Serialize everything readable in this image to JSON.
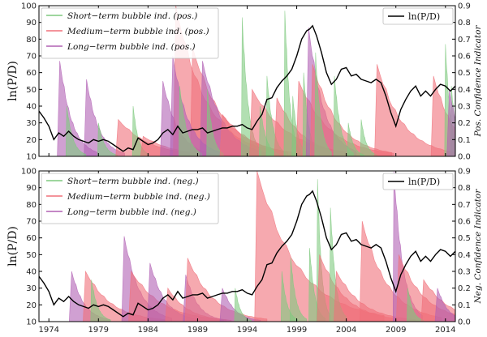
{
  "chart_data": [
    {
      "type": "area",
      "panel": "top",
      "ylabel": "ln(P/D)",
      "y2label": "Pos. Confidence Indicator",
      "ylim": [
        10,
        100
      ],
      "y2lim": [
        0.0,
        0.9
      ],
      "xlim": [
        1973,
        2015
      ],
      "yticks": [
        "10",
        "20",
        "30",
        "40",
        "50",
        "60",
        "70",
        "80",
        "90",
        "100"
      ],
      "y2ticks": [
        "0.0",
        "0.1",
        "0.2",
        "0.3",
        "0.4",
        "0.5",
        "0.6",
        "0.7",
        "0.8",
        "0.9"
      ],
      "legend_left": {
        "position": "top-left",
        "items": [
          {
            "label": "Short−term bubble ind. (pos.)",
            "color": "#7fc97f"
          },
          {
            "label": "Medium−term bubble ind. (pos.)",
            "color": "#f0707a"
          },
          {
            "label": "Long−term bubble ind. (pos.)",
            "color": "#b160b4"
          }
        ]
      },
      "legend_right": {
        "position": "top-right",
        "label": "ln(P/D)",
        "color": "#000000"
      },
      "series": [
        {
          "name": "ln(P/D)",
          "axis": "left",
          "color": "#000000",
          "x": [
            1973.0,
            1973.5,
            1974.0,
            1974.5,
            1975.0,
            1975.5,
            1976.0,
            1976.5,
            1977.0,
            1977.5,
            1978.0,
            1978.5,
            1979.0,
            1979.5,
            1980.0,
            1980.5,
            1981.0,
            1981.5,
            1982.0,
            1982.5,
            1983.0,
            1983.5,
            1984.0,
            1984.5,
            1985.0,
            1985.5,
            1986.0,
            1986.5,
            1987.0,
            1987.5,
            1988.0,
            1988.5,
            1989.0,
            1989.5,
            1990.0,
            1990.5,
            1991.0,
            1991.5,
            1992.0,
            1992.5,
            1993.0,
            1993.5,
            1994.0,
            1994.5,
            1995.0,
            1995.5,
            1996.0,
            1996.5,
            1997.0,
            1997.5,
            1998.0,
            1998.5,
            1999.0,
            1999.5,
            2000.0,
            2000.3,
            2000.6,
            2001.0,
            2001.5,
            2002.0,
            2002.5,
            2003.0,
            2003.5,
            2004.0,
            2004.5,
            2005.0,
            2005.5,
            2006.0,
            2006.5,
            2007.0,
            2007.5,
            2008.0,
            2008.5,
            2009.0,
            2009.5,
            2010.0,
            2010.5,
            2011.0,
            2011.5,
            2012.0,
            2012.5,
            2013.0,
            2013.5,
            2014.0,
            2014.5,
            2015.0
          ],
          "values": [
            37,
            33,
            28,
            20,
            24,
            22,
            25,
            22,
            20,
            19,
            18,
            20,
            19,
            20,
            19,
            17,
            15,
            13,
            15,
            14,
            21,
            19,
            17,
            18,
            20,
            24,
            26,
            23,
            28,
            24,
            25,
            26,
            26,
            27,
            24,
            25,
            26,
            27,
            27,
            28,
            28,
            29,
            27,
            26,
            31,
            35,
            44,
            45,
            51,
            55,
            58,
            62,
            70,
            80,
            85,
            86,
            88,
            82,
            72,
            60,
            53,
            56,
            62,
            63,
            58,
            59,
            56,
            55,
            54,
            56,
            54,
            46,
            36,
            28,
            38,
            44,
            49,
            52,
            46,
            49,
            46,
            50,
            53,
            52,
            49,
            52
          ]
        }
      ],
      "bubbles": [
        {
          "color": "#b160b4",
          "x": 1975.1,
          "height": 0.57,
          "decay": 1.2
        },
        {
          "color": "#b160b4",
          "x": 1977.8,
          "height": 0.46,
          "decay": 1.2
        },
        {
          "color": "#7fc97f",
          "x": 1975.8,
          "height": 0.3,
          "decay": 0.6
        },
        {
          "color": "#7fc97f",
          "x": 1979.0,
          "height": 0.2,
          "decay": 0.6
        },
        {
          "color": "#f0707a",
          "x": 1981.0,
          "height": 0.22,
          "decay": 3.0
        },
        {
          "color": "#7fc97f",
          "x": 1982.5,
          "height": 0.3,
          "decay": 0.5
        },
        {
          "color": "#f0707a",
          "x": 1983.5,
          "height": 0.12,
          "decay": 3.0
        },
        {
          "color": "#b160b4",
          "x": 1985.5,
          "height": 0.45,
          "decay": 1.5
        },
        {
          "color": "#f0707a",
          "x": 1986.8,
          "height": 0.9,
          "decay": 3.0
        },
        {
          "color": "#f0707a",
          "x": 1988.5,
          "height": 0.65,
          "decay": 3.0
        },
        {
          "color": "#b160b4",
          "x": 1986.5,
          "height": 0.6,
          "decay": 1.5
        },
        {
          "color": "#7fc97f",
          "x": 1987.2,
          "height": 0.42,
          "decay": 0.7
        },
        {
          "color": "#b160b4",
          "x": 1989.5,
          "height": 0.57,
          "decay": 2.0
        },
        {
          "color": "#7fc97f",
          "x": 1990.0,
          "height": 0.4,
          "decay": 0.5
        },
        {
          "color": "#f0707a",
          "x": 1991.5,
          "height": 0.25,
          "decay": 3.0
        },
        {
          "color": "#7fc97f",
          "x": 1993.5,
          "height": 0.83,
          "decay": 0.6
        },
        {
          "color": "#f0707a",
          "x": 1994.5,
          "height": 0.4,
          "decay": 3.5
        },
        {
          "color": "#7fc97f",
          "x": 1995.3,
          "height": 0.3,
          "decay": 0.6
        },
        {
          "color": "#7fc97f",
          "x": 1996.0,
          "height": 0.48,
          "decay": 0.6
        },
        {
          "color": "#f0707a",
          "x": 1997.0,
          "height": 0.35,
          "decay": 2.5
        },
        {
          "color": "#7fc97f",
          "x": 1997.8,
          "height": 0.87,
          "decay": 0.5
        },
        {
          "color": "#7fc97f",
          "x": 1998.6,
          "height": 0.36,
          "decay": 0.5
        },
        {
          "color": "#f0707a",
          "x": 1999.2,
          "height": 0.45,
          "decay": 3.0
        },
        {
          "color": "#7fc97f",
          "x": 1999.7,
          "height": 0.5,
          "decay": 0.5
        },
        {
          "color": "#b160b4",
          "x": 2000.2,
          "height": 0.77,
          "decay": 1.5
        },
        {
          "color": "#f0707a",
          "x": 2000.6,
          "height": 0.55,
          "decay": 2.5
        },
        {
          "color": "#7fc97f",
          "x": 2000.9,
          "height": 0.62,
          "decay": 0.5
        },
        {
          "color": "#7fc97f",
          "x": 2002.8,
          "height": 0.48,
          "decay": 0.6
        },
        {
          "color": "#7fc97f",
          "x": 2004.2,
          "height": 0.2,
          "decay": 0.5
        },
        {
          "color": "#7fc97f",
          "x": 2005.5,
          "height": 0.22,
          "decay": 0.5
        },
        {
          "color": "#f0707a",
          "x": 2007.1,
          "height": 0.55,
          "decay": 2.5
        },
        {
          "color": "#f0707a",
          "x": 2012.8,
          "height": 0.48,
          "decay": 2.0
        },
        {
          "color": "#7fc97f",
          "x": 2014.0,
          "height": 0.67,
          "decay": 0.5
        },
        {
          "color": "#7fc97f",
          "x": 2014.6,
          "height": 0.42,
          "decay": 0.5
        },
        {
          "color": "#b160b4",
          "x": 2014.4,
          "height": 0.4,
          "decay": 1.0
        }
      ]
    },
    {
      "type": "area",
      "panel": "bottom",
      "ylabel": "ln(P/D)",
      "y2label": "Neg. Confidence Indicator",
      "ylim": [
        10,
        100
      ],
      "y2lim": [
        0.0,
        0.9
      ],
      "xlim": [
        1973,
        2015
      ],
      "yticks": [
        "10",
        "20",
        "30",
        "40",
        "50",
        "60",
        "70",
        "80",
        "90",
        "100"
      ],
      "y2ticks": [
        "0.0",
        "0.1",
        "0.2",
        "0.3",
        "0.4",
        "0.5",
        "0.6",
        "0.7",
        "0.8",
        "0.9"
      ],
      "xticks": [
        "1974",
        "1979",
        "1984",
        "1989",
        "1994",
        "1999",
        "2004",
        "2009",
        "2014"
      ],
      "xtick_values": [
        1974,
        1979,
        1984,
        1989,
        1994,
        1999,
        2004,
        2009,
        2014
      ],
      "legend_left": {
        "position": "top-left",
        "items": [
          {
            "label": "Short−term bubble ind. (neg.)",
            "color": "#7fc97f"
          },
          {
            "label": "Medium−term bubble ind. (neg.)",
            "color": "#f0707a"
          },
          {
            "label": "Long−term bubble ind. (neg.)",
            "color": "#b160b4"
          }
        ]
      },
      "legend_right": {
        "position": "top-right",
        "label": "ln(P/D)",
        "color": "#000000"
      },
      "series": [
        {
          "name": "ln(P/D)",
          "axis": "left",
          "color": "#000000",
          "x": [
            1973.0,
            1973.5,
            1974.0,
            1974.5,
            1975.0,
            1975.5,
            1976.0,
            1976.5,
            1977.0,
            1977.5,
            1978.0,
            1978.5,
            1979.0,
            1979.5,
            1980.0,
            1980.5,
            1981.0,
            1981.5,
            1982.0,
            1982.5,
            1983.0,
            1983.5,
            1984.0,
            1984.5,
            1985.0,
            1985.5,
            1986.0,
            1986.5,
            1987.0,
            1987.5,
            1988.0,
            1988.5,
            1989.0,
            1989.5,
            1990.0,
            1990.5,
            1991.0,
            1991.5,
            1992.0,
            1992.5,
            1993.0,
            1993.5,
            1994.0,
            1994.5,
            1995.0,
            1995.5,
            1996.0,
            1996.5,
            1997.0,
            1997.5,
            1998.0,
            1998.5,
            1999.0,
            1999.5,
            2000.0,
            2000.3,
            2000.6,
            2001.0,
            2001.5,
            2002.0,
            2002.5,
            2003.0,
            2003.5,
            2004.0,
            2004.5,
            2005.0,
            2005.5,
            2006.0,
            2006.5,
            2007.0,
            2007.5,
            2008.0,
            2008.5,
            2009.0,
            2009.5,
            2010.0,
            2010.5,
            2011.0,
            2011.5,
            2012.0,
            2012.5,
            2013.0,
            2013.5,
            2014.0,
            2014.5,
            2015.0
          ],
          "values": [
            37,
            33,
            28,
            20,
            24,
            22,
            25,
            22,
            20,
            19,
            18,
            20,
            19,
            20,
            19,
            17,
            15,
            13,
            15,
            14,
            21,
            19,
            17,
            18,
            20,
            24,
            26,
            23,
            28,
            24,
            25,
            26,
            26,
            27,
            24,
            25,
            26,
            27,
            27,
            28,
            28,
            29,
            27,
            26,
            31,
            35,
            44,
            45,
            51,
            55,
            58,
            62,
            70,
            80,
            85,
            86,
            88,
            82,
            72,
            60,
            53,
            56,
            62,
            63,
            58,
            59,
            56,
            55,
            54,
            56,
            54,
            46,
            36,
            28,
            38,
            44,
            49,
            52,
            46,
            49,
            46,
            50,
            53,
            52,
            49,
            52
          ]
        }
      ],
      "bubbles": [
        {
          "color": "#b160b4",
          "x": 1976.3,
          "height": 0.3,
          "decay": 1.2
        },
        {
          "color": "#f0707a",
          "x": 1977.7,
          "height": 0.3,
          "decay": 2.5
        },
        {
          "color": "#7fc97f",
          "x": 1978.3,
          "height": 0.25,
          "decay": 0.6
        },
        {
          "color": "#b160b4",
          "x": 1981.6,
          "height": 0.51,
          "decay": 1.5
        },
        {
          "color": "#f0707a",
          "x": 1982.3,
          "height": 0.3,
          "decay": 3.0
        },
        {
          "color": "#b160b4",
          "x": 1984.2,
          "height": 0.35,
          "decay": 1.5
        },
        {
          "color": "#f0707a",
          "x": 1986.0,
          "height": 0.2,
          "decay": 2.0
        },
        {
          "color": "#b160b4",
          "x": 1987.8,
          "height": 0.28,
          "decay": 1.2
        },
        {
          "color": "#f0707a",
          "x": 1988.0,
          "height": 0.38,
          "decay": 2.5
        },
        {
          "color": "#b160b4",
          "x": 1991.5,
          "height": 0.2,
          "decay": 1.2
        },
        {
          "color": "#7fc97f",
          "x": 1992.8,
          "height": 0.2,
          "decay": 0.5
        },
        {
          "color": "#f0707a",
          "x": 1995.0,
          "height": 0.9,
          "decay": 4.0
        },
        {
          "color": "#7fc97f",
          "x": 1997.5,
          "height": 0.3,
          "decay": 0.5
        },
        {
          "color": "#7fc97f",
          "x": 1998.4,
          "height": 0.38,
          "decay": 0.5
        },
        {
          "color": "#7fc97f",
          "x": 2000.3,
          "height": 0.44,
          "decay": 0.5
        },
        {
          "color": "#7fc97f",
          "x": 2001.1,
          "height": 0.85,
          "decay": 0.4
        },
        {
          "color": "#f0707a",
          "x": 2001.3,
          "height": 0.4,
          "decay": 2.5
        },
        {
          "color": "#7fc97f",
          "x": 2002.4,
          "height": 0.68,
          "decay": 0.5
        },
        {
          "color": "#f0707a",
          "x": 2003.0,
          "height": 0.3,
          "decay": 2.5
        },
        {
          "color": "#f0707a",
          "x": 2005.6,
          "height": 0.6,
          "decay": 2.5
        },
        {
          "color": "#b160b4",
          "x": 2008.8,
          "height": 0.9,
          "decay": 0.9
        },
        {
          "color": "#f0707a",
          "x": 2009.3,
          "height": 0.4,
          "decay": 2.5
        },
        {
          "color": "#7fc97f",
          "x": 2010.2,
          "height": 0.2,
          "decay": 0.5
        },
        {
          "color": "#f0707a",
          "x": 2011.8,
          "height": 0.25,
          "decay": 2.5
        },
        {
          "color": "#b160b4",
          "x": 2013.2,
          "height": 0.2,
          "decay": 1.0
        }
      ]
    }
  ]
}
